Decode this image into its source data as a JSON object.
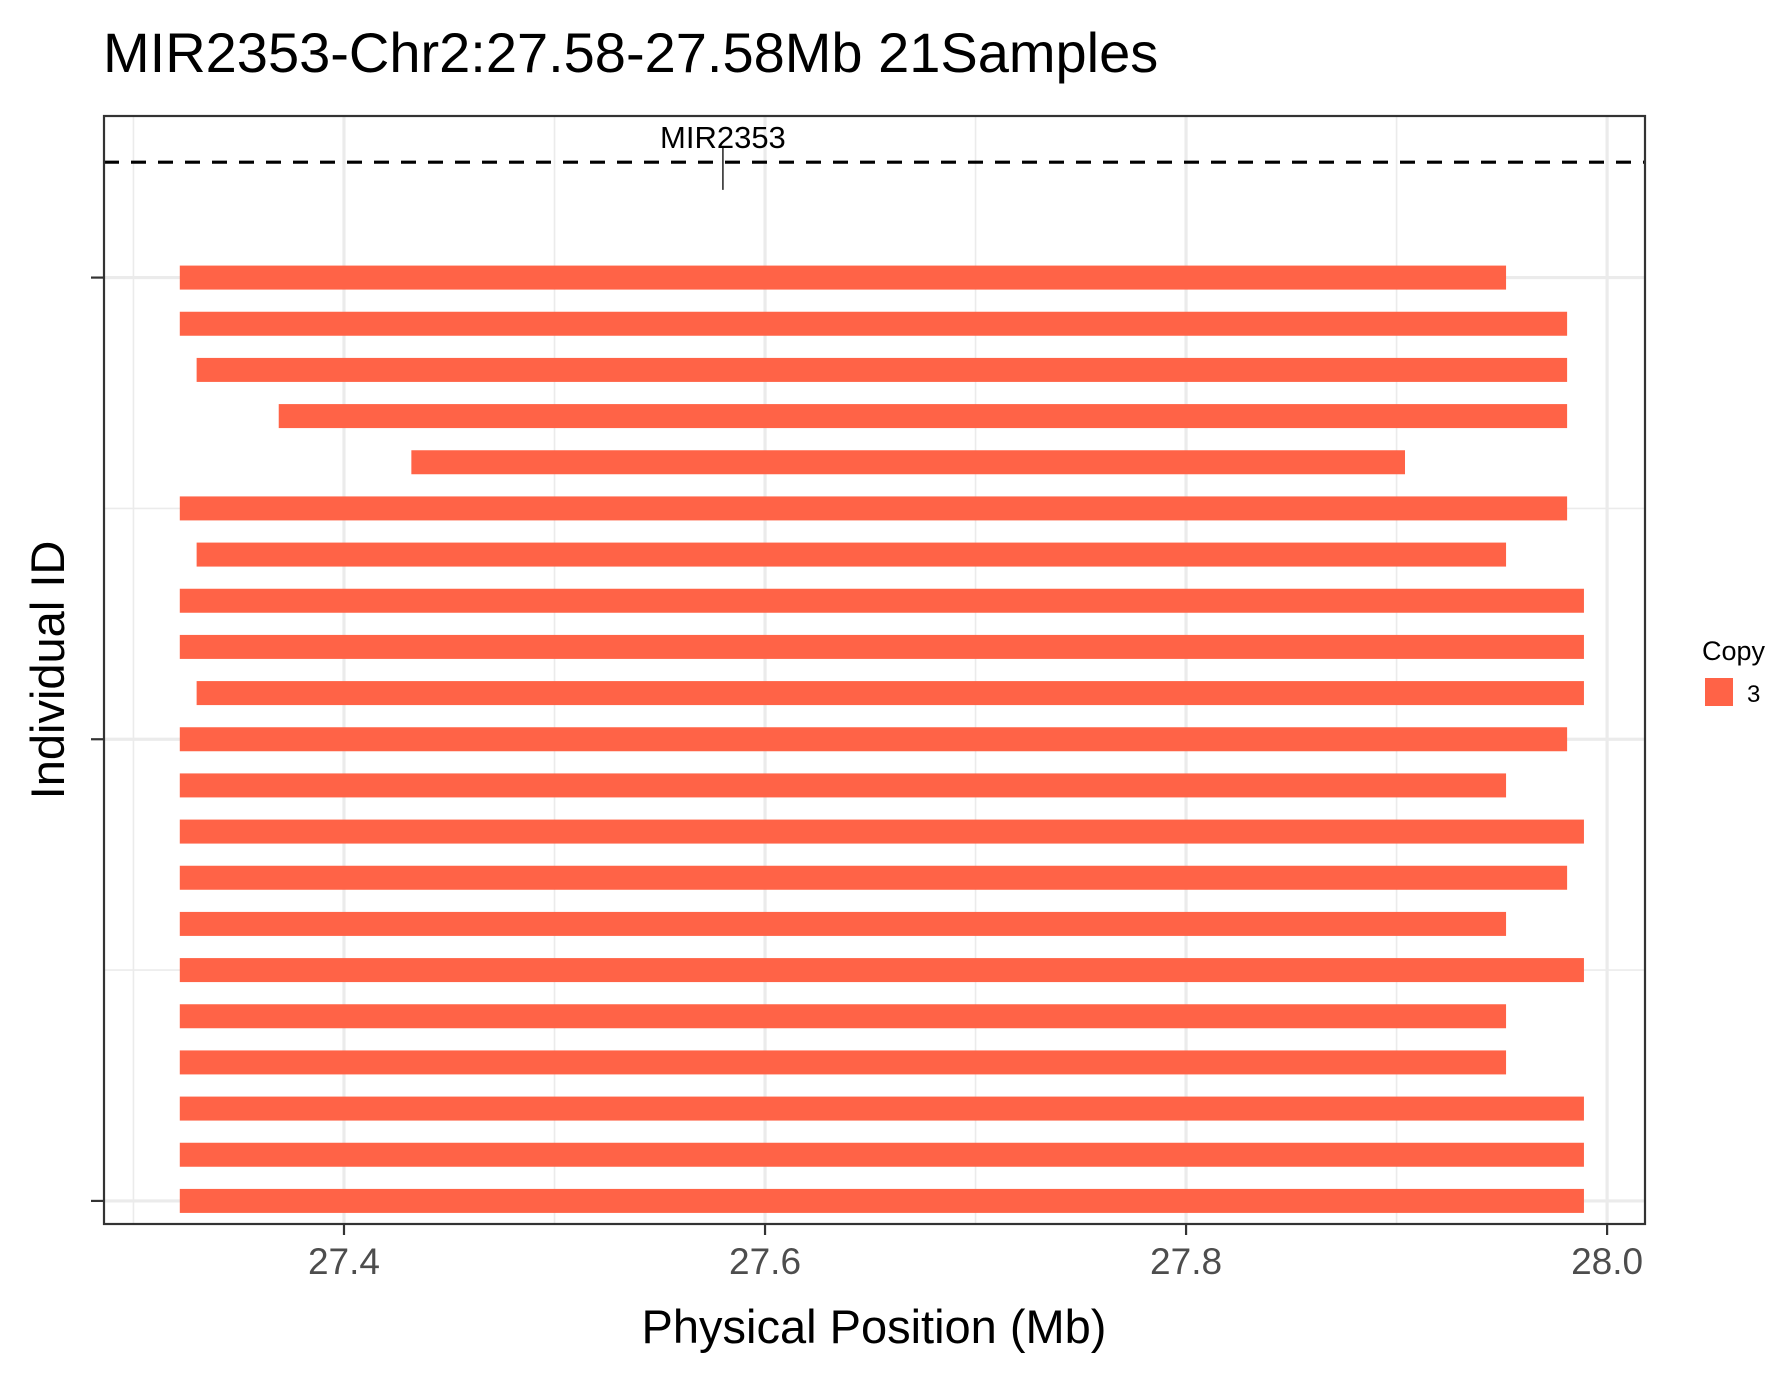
{
  "chart_data": {
    "type": "bar",
    "orientation": "horizontal-segments",
    "title": "MIR2353-Chr2:27.58-27.58Mb 21Samples",
    "xlabel": "Physical Position (Mb)",
    "ylabel": "Individual ID",
    "xlim": [
      27.286,
      28.018
    ],
    "xticks": [
      27.4,
      27.6,
      27.8,
      28.0
    ],
    "xtick_labels": [
      "27.4",
      "27.6",
      "27.8",
      "28.0"
    ],
    "ylim": [
      0.5,
      24.5
    ],
    "yticks": [
      1,
      11,
      21
    ],
    "y_minor": [
      6,
      16,
      26
    ],
    "gene": {
      "name": "MIR2353",
      "position": 27.58,
      "y_low": 22.9,
      "y_high": 23.85,
      "label_y": 24.05
    },
    "separator_y": 23.5,
    "legend": {
      "title": "Copy",
      "items": [
        {
          "label": "3",
          "color": "#ff6347"
        }
      ]
    },
    "segments": [
      {
        "y": 21,
        "start": 27.322,
        "end": 27.952,
        "copy": 3
      },
      {
        "y": 20,
        "start": 27.322,
        "end": 27.981,
        "copy": 3
      },
      {
        "y": 19,
        "start": 27.33,
        "end": 27.981,
        "copy": 3
      },
      {
        "y": 18,
        "start": 27.369,
        "end": 27.981,
        "copy": 3
      },
      {
        "y": 17,
        "start": 27.432,
        "end": 27.904,
        "copy": 3
      },
      {
        "y": 16,
        "start": 27.322,
        "end": 27.981,
        "copy": 3
      },
      {
        "y": 15,
        "start": 27.33,
        "end": 27.952,
        "copy": 3
      },
      {
        "y": 14,
        "start": 27.322,
        "end": 27.989,
        "copy": 3
      },
      {
        "y": 13,
        "start": 27.322,
        "end": 27.989,
        "copy": 3
      },
      {
        "y": 12,
        "start": 27.33,
        "end": 27.989,
        "copy": 3
      },
      {
        "y": 11,
        "start": 27.322,
        "end": 27.981,
        "copy": 3
      },
      {
        "y": 10,
        "start": 27.322,
        "end": 27.952,
        "copy": 3
      },
      {
        "y": 9,
        "start": 27.322,
        "end": 27.989,
        "copy": 3
      },
      {
        "y": 8,
        "start": 27.322,
        "end": 27.981,
        "copy": 3
      },
      {
        "y": 7,
        "start": 27.322,
        "end": 27.952,
        "copy": 3
      },
      {
        "y": 6,
        "start": 27.322,
        "end": 27.989,
        "copy": 3
      },
      {
        "y": 5,
        "start": 27.322,
        "end": 27.952,
        "copy": 3
      },
      {
        "y": 4,
        "start": 27.322,
        "end": 27.952,
        "copy": 3
      },
      {
        "y": 3,
        "start": 27.322,
        "end": 27.989,
        "copy": 3
      },
      {
        "y": 2,
        "start": 27.322,
        "end": 27.989,
        "copy": 3
      },
      {
        "y": 1,
        "start": 27.322,
        "end": 27.989,
        "copy": 3
      }
    ],
    "colors": {
      "bar": "#ff6347",
      "grid": "#ebebeb",
      "panel_border": "#333333",
      "tick_text": "#4d4d4d"
    }
  }
}
